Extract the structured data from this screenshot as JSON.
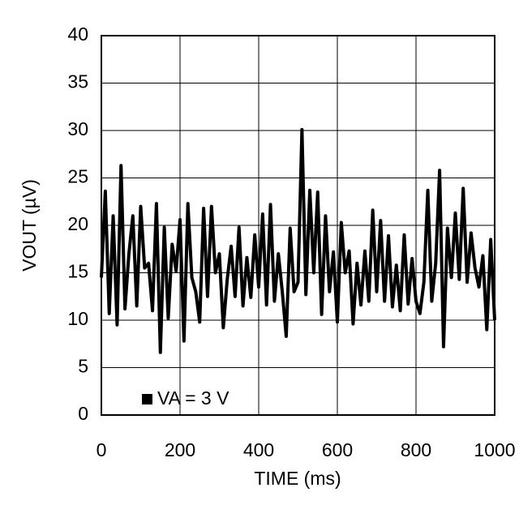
{
  "chart_data": {
    "type": "line",
    "xlabel": "TIME (ms)",
    "ylabel": "VOUT (µV)",
    "x": [
      0,
      10,
      20,
      30,
      40,
      50,
      60,
      70,
      80,
      90,
      100,
      110,
      120,
      130,
      140,
      150,
      160,
      170,
      180,
      190,
      200,
      210,
      220,
      230,
      240,
      250,
      260,
      270,
      280,
      290,
      300,
      310,
      320,
      330,
      340,
      350,
      360,
      370,
      380,
      390,
      400,
      410,
      420,
      430,
      440,
      450,
      460,
      470,
      480,
      490,
      500,
      510,
      520,
      530,
      540,
      550,
      560,
      570,
      580,
      590,
      600,
      610,
      620,
      630,
      640,
      650,
      660,
      670,
      680,
      690,
      700,
      710,
      720,
      730,
      740,
      750,
      760,
      770,
      780,
      790,
      800,
      810,
      820,
      830,
      840,
      850,
      860,
      870,
      880,
      890,
      900,
      910,
      920,
      930,
      940,
      950,
      960,
      970,
      980,
      990,
      1000
    ],
    "series": [
      {
        "name": "VA = 3 V",
        "color": "#000000",
        "values": [
          14.5,
          23.6,
          10.7,
          21,
          9.5,
          26.3,
          11.2,
          17,
          21,
          11.5,
          22,
          15.5,
          16,
          11,
          22.3,
          6.6,
          19.8,
          10.2,
          18,
          15.2,
          20.6,
          7.8,
          22.3,
          14.5,
          13,
          9.8,
          21.8,
          12.5,
          22,
          15,
          17,
          9.2,
          14.3,
          17.8,
          12.5,
          19.8,
          11.5,
          16.6,
          12.4,
          19,
          13.5,
          21.2,
          11.6,
          22.2,
          12,
          17,
          13,
          8.3,
          19.7,
          13,
          14,
          30.1,
          12.7,
          23.7,
          15,
          23.5,
          10.6,
          21,
          13,
          17.2,
          9.8,
          20.3,
          15,
          17.3,
          9.6,
          16,
          11.6,
          17.3,
          12,
          21.6,
          13,
          20.5,
          12,
          18.9,
          11.4,
          15.8,
          11,
          19,
          11.7,
          16.5,
          12,
          10.7,
          14,
          23.7,
          12,
          16,
          25.8,
          7.2,
          19.7,
          14.5,
          21.3,
          14.3,
          23.9,
          14,
          19.2,
          15.5,
          13.5,
          16.8,
          9,
          18.5,
          10
        ]
      }
    ],
    "xlim": [
      0,
      1000
    ],
    "xticks": [
      0,
      200,
      400,
      600,
      800,
      1000
    ],
    "ylim": [
      0,
      40
    ],
    "yticks": [
      0,
      5,
      10,
      15,
      20,
      25,
      30,
      35,
      40
    ],
    "grid": true,
    "legend": "lower left"
  }
}
